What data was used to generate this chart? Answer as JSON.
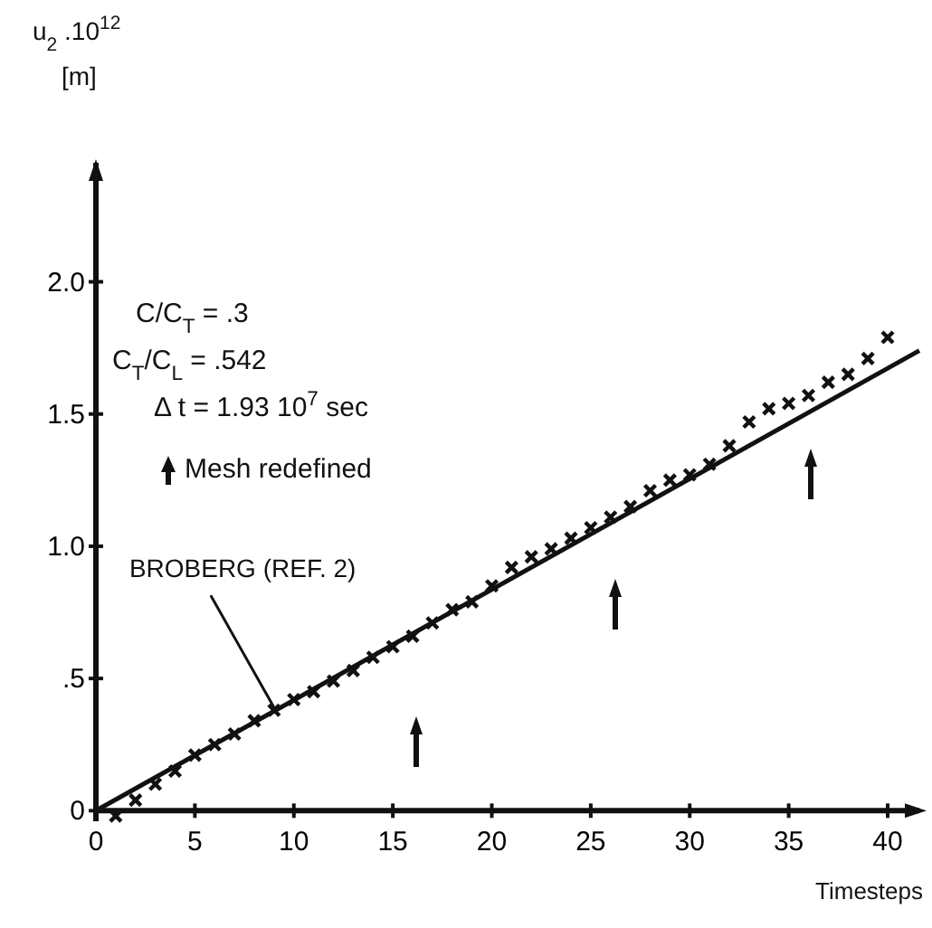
{
  "chart_data": {
    "type": "scatter",
    "xlabel": "Timesteps",
    "ylabel": "u$_{2}$ .10$^{12}$\n[m]",
    "x": [
      1,
      2,
      3,
      4,
      5,
      6,
      7,
      8,
      9,
      10,
      11,
      12,
      13,
      14,
      15,
      16,
      17,
      18,
      19,
      20,
      21,
      22,
      23,
      24,
      25,
      26,
      27,
      28,
      29,
      30,
      31,
      32,
      33,
      34,
      35,
      36,
      37,
      38,
      39,
      40
    ],
    "series": [
      {
        "type": "scatter",
        "marker": "cross",
        "color": "#111111",
        "values": [
          -0.02,
          0.04,
          0.1,
          0.15,
          0.21,
          0.25,
          0.29,
          0.34,
          0.38,
          0.42,
          0.45,
          0.49,
          0.53,
          0.58,
          0.62,
          0.66,
          0.71,
          0.76,
          0.79,
          0.85,
          0.92,
          0.96,
          0.99,
          1.03,
          1.07,
          1.11,
          1.15,
          1.21,
          1.25,
          1.27,
          1.31,
          1.38,
          1.47,
          1.52,
          1.54,
          1.57,
          1.62,
          1.65,
          1.71,
          1.79
        ]
      },
      {
        "type": "line",
        "line_style": "solid",
        "color": "#111111",
        "x": [
          0,
          41.6
        ],
        "values": [
          0,
          1.74
        ]
      }
    ],
    "xlim": [
      0,
      41.6
    ],
    "ylim": [
      -0.04,
      2.45
    ],
    "xticks": [
      0,
      5,
      10,
      15,
      20,
      25,
      30,
      35,
      40
    ],
    "yticks": [
      0,
      {
        "value": 0.5,
        "label": ".5"
      },
      {
        "value": 1,
        "label": "1.0"
      },
      {
        "value": 1.5,
        "label": "1.5"
      },
      {
        "value": 2,
        "label": "2.0"
      }
    ],
    "grid": false,
    "annotations": [
      "C/C$_{T}$ = .3",
      "C$_{T}$/C$_{L}$ = .542",
      "Δ t = 1.93 10$^{7}$ sec",
      "Mesh redefined",
      {
        "text": "BROBERG (REF. 2)",
        "x": 9,
        "y": 0.39
      }
    ]
  }
}
